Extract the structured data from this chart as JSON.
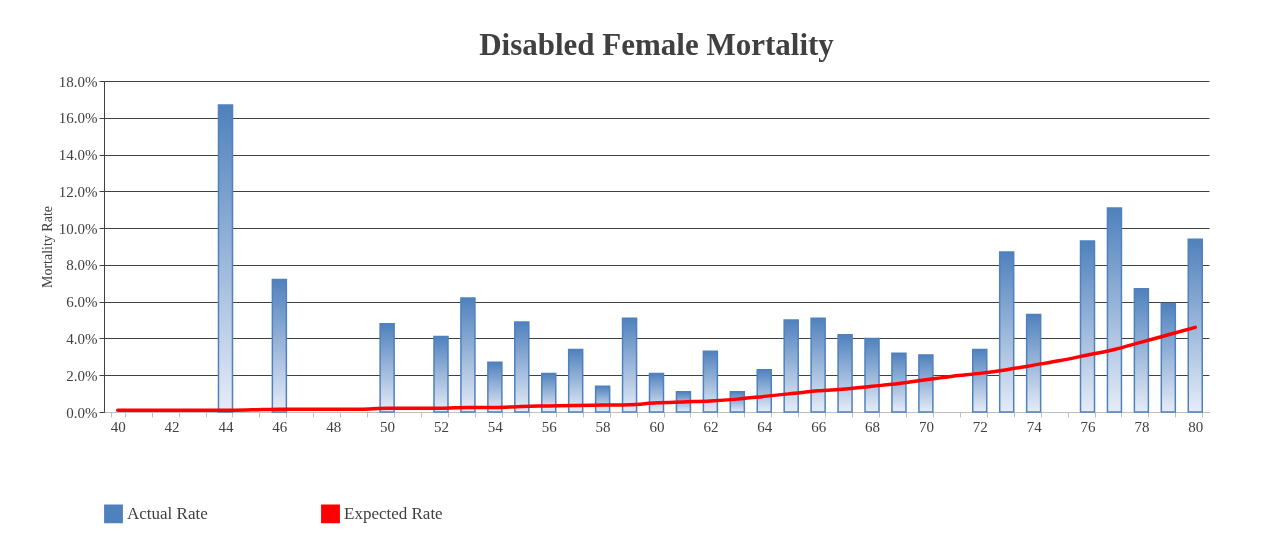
{
  "chart_data": {
    "type": "bar",
    "title": "Disabled Female Mortality",
    "ylabel": "Mortality Rate",
    "categories": [
      "40",
      null,
      "42",
      null,
      "44",
      null,
      "46",
      null,
      "48",
      null,
      "50",
      null,
      "52",
      null,
      "54",
      null,
      "56",
      null,
      "58",
      null,
      "60",
      null,
      "62",
      null,
      "64",
      null,
      "66",
      null,
      "68",
      null,
      "70",
      null,
      "72",
      null,
      "74",
      null,
      "76",
      null,
      "78",
      null,
      "80"
    ],
    "series": [
      {
        "name": "Actual Rate",
        "color": "#4f81bd",
        "values": [
          null,
          null,
          null,
          null,
          16.7,
          null,
          7.2,
          null,
          null,
          null,
          4.8,
          null,
          4.1,
          6.2,
          2.7,
          4.9,
          2.1,
          3.4,
          1.4,
          5.1,
          2.1,
          1.1,
          3.3,
          1.1,
          2.3,
          5.0,
          5.1,
          4.2,
          4.0,
          3.2,
          3.1,
          null,
          3.4,
          8.7,
          5.3,
          null,
          9.3,
          11.1,
          6.7,
          5.9,
          9.4
        ]
      },
      {
        "name": "Expected Rate",
        "type": "line",
        "color": "#ff0000",
        "values": [
          0.1,
          0.1,
          0.1,
          0.1,
          0.1,
          0.12,
          0.15,
          0.15,
          0.15,
          0.15,
          0.2,
          0.2,
          0.2,
          0.25,
          0.25,
          0.3,
          0.33,
          0.35,
          0.38,
          0.4,
          0.5,
          0.55,
          0.6,
          0.7,
          0.85,
          1.0,
          1.15,
          1.25,
          1.4,
          1.55,
          1.75,
          1.95,
          2.1,
          2.3,
          2.55,
          2.8,
          3.1,
          3.4,
          3.8,
          4.2,
          4.6
        ]
      }
    ],
    "ylim": [
      0,
      18
    ],
    "yticks": [
      {
        "value": 0,
        "label": "0.0%"
      },
      {
        "value": 2,
        "label": "2.0%"
      },
      {
        "value": 4,
        "label": "4.0%"
      },
      {
        "value": 6,
        "label": "6.0%"
      },
      {
        "value": 8,
        "label": "8.0%"
      },
      {
        "value": 10,
        "label": "10.0%"
      },
      {
        "value": 12,
        "label": "12.0%"
      },
      {
        "value": 14,
        "label": "14.0%"
      },
      {
        "value": 16,
        "label": "16.0%"
      },
      {
        "value": 18,
        "label": "18.0%"
      }
    ],
    "grid": "y",
    "legend": "bottom"
  }
}
